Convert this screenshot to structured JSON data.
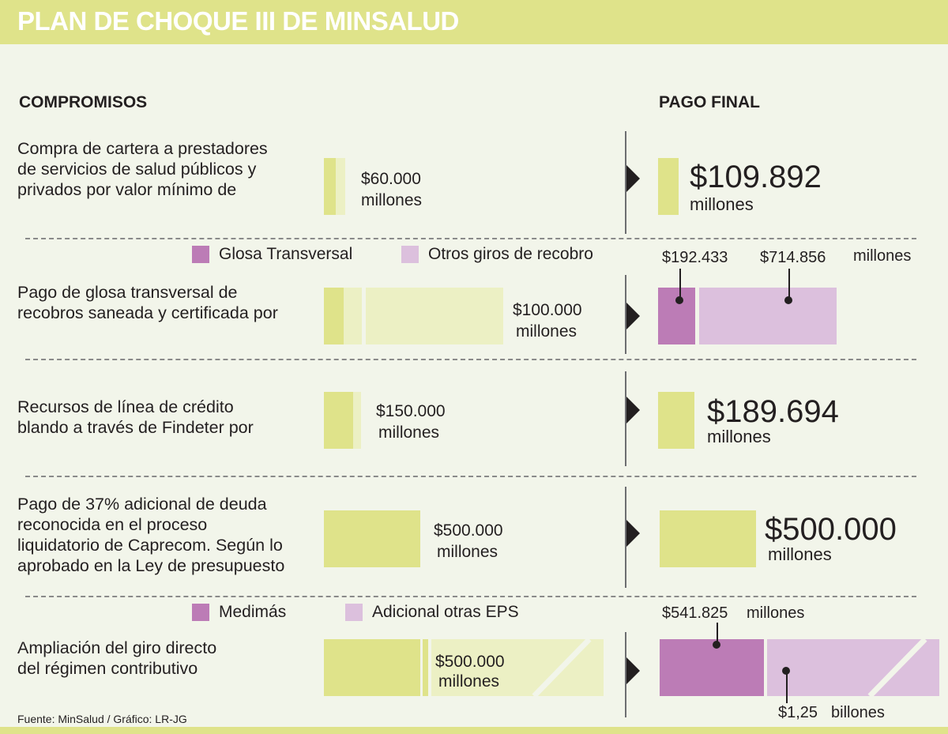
{
  "title": "PLAN DE CHOQUE III DE MINSALUD",
  "headers": {
    "left": "COMPROMISOS",
    "right": "PAGO FINAL"
  },
  "rows": [
    {
      "desc": [
        "Compra de cartera a prestadores",
        "de servicios de salud públicos y",
        "privados por valor mínimo de"
      ],
      "commit_amount": "$60.000",
      "commit_unit": "millones",
      "final_amount": "$109.892",
      "final_unit": "millones"
    },
    {
      "legend": [
        "Glosa Transversal",
        "Otros giros de recobro"
      ],
      "desc": [
        "Pago de glosa transversal de",
        "recobros saneada y certificada por"
      ],
      "commit_amount": "$100.000",
      "commit_unit": "millones",
      "final_a": "$192.433",
      "final_b": "$714.856",
      "final_unit": "millones"
    },
    {
      "desc": [
        "Recursos de línea de crédito",
        "blando a través de Findeter por"
      ],
      "commit_amount": "$150.000",
      "commit_unit": "millones",
      "final_amount": "$189.694",
      "final_unit": "millones"
    },
    {
      "desc": [
        "Pago de 37% adicional de deuda",
        "reconocida en el proceso",
        "liquidatorio de Caprecom. Según lo",
        "aprobado en la Ley de presupuesto"
      ],
      "commit_amount": "$500.000",
      "commit_unit": "millones",
      "final_amount": "$500.000",
      "final_unit": "millones"
    },
    {
      "legend": [
        "Medimás",
        "Adicional otras EPS"
      ],
      "desc": [
        "Ampliación del giro directo",
        "del régimen contributivo"
      ],
      "commit_amount": "$500.000",
      "commit_unit": "millones",
      "final_a": "$541.825",
      "final_a_unit": "millones",
      "final_b": "$1,25",
      "final_b_unit": "billones"
    }
  ],
  "source": "Fuente: MinSalud / Gráfico: LR-JG",
  "colors": {
    "green": "#dfe38a",
    "light_green": "#ecf0c4",
    "purple": "#bc7cb6",
    "light_purple": "#dcc0dd",
    "background": "#f2f5ea"
  }
}
